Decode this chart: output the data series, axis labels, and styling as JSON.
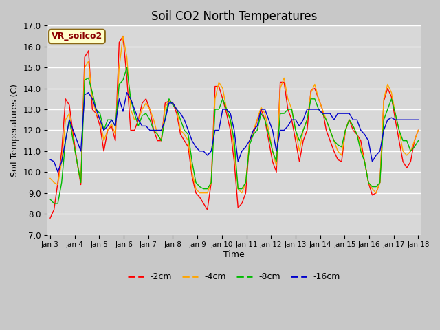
{
  "title": "Soil CO2 North Temperatures",
  "xlabel": "Time",
  "ylabel": "Soil Temperatures (C)",
  "ylim": [
    7.0,
    17.0
  ],
  "yticks": [
    7.0,
    8.0,
    9.0,
    10.0,
    11.0,
    12.0,
    13.0,
    14.0,
    15.0,
    16.0,
    17.0
  ],
  "legend_label": "VR_soilco2",
  "fig_facecolor": "#c8c8c8",
  "axes_facecolor": "#d8d8d8",
  "grid_color": "#ffffff",
  "series_colors": {
    "-2cm": "#ff0000",
    "-4cm": "#ffa500",
    "-8cm": "#00bb00",
    "-16cm": "#0000cc"
  },
  "xtick_labels": [
    "Jan 3",
    "Jan 4",
    "Jan 5",
    "Jan 6",
    "Jan 7",
    "Jan 8",
    "Jan 9",
    "Jan 10",
    "Jan 11",
    "Jan 12",
    "Jan 13",
    "Jan 14",
    "Jan 15",
    "Jan 16",
    "Jan 17",
    "Jan 18"
  ],
  "t_2cm": [
    7.8,
    8.2,
    9.5,
    11.0,
    13.5,
    13.2,
    11.8,
    10.5,
    9.4,
    15.5,
    15.8,
    13.0,
    12.8,
    12.2,
    11.0,
    12.0,
    12.2,
    11.5,
    16.2,
    16.5,
    14.5,
    12.0,
    12.0,
    12.5,
    13.3,
    13.5,
    13.0,
    12.0,
    11.5,
    11.5,
    13.3,
    13.4,
    13.3,
    12.8,
    11.8,
    11.5,
    11.2,
    9.8,
    9.0,
    8.8,
    8.5,
    8.2,
    9.5,
    14.1,
    14.1,
    13.5,
    12.8,
    12.0,
    10.5,
    8.3,
    8.5,
    9.0,
    11.5,
    11.8,
    12.5,
    13.0,
    12.5,
    11.5,
    10.5,
    10.0,
    14.3,
    14.3,
    13.0,
    12.5,
    11.5,
    10.5,
    11.5,
    12.0,
    13.9,
    14.0,
    13.5,
    13.0,
    12.0,
    11.5,
    11.0,
    10.6,
    10.5,
    12.0,
    12.5,
    12.0,
    11.8,
    11.5,
    10.5,
    9.5,
    8.9,
    9.0,
    9.5,
    13.4,
    14.0,
    13.6,
    12.5,
    11.5,
    10.5,
    10.2,
    10.5,
    11.5,
    12.0
  ],
  "t_4cm": [
    9.7,
    9.5,
    9.4,
    10.5,
    12.5,
    12.8,
    11.5,
    10.5,
    9.5,
    15.0,
    15.3,
    13.5,
    12.8,
    12.5,
    11.5,
    12.0,
    12.3,
    11.8,
    15.0,
    16.5,
    15.5,
    13.0,
    12.5,
    12.5,
    13.0,
    13.3,
    13.0,
    12.5,
    11.8,
    11.5,
    13.1,
    13.4,
    13.3,
    13.0,
    12.0,
    11.8,
    11.5,
    10.0,
    9.2,
    9.0,
    9.0,
    9.0,
    9.5,
    13.5,
    14.3,
    14.0,
    13.0,
    12.5,
    11.0,
    9.2,
    9.0,
    9.5,
    11.5,
    12.0,
    12.5,
    13.1,
    12.8,
    12.0,
    11.0,
    10.3,
    14.0,
    14.5,
    13.5,
    13.0,
    12.0,
    11.0,
    12.0,
    12.5,
    13.8,
    14.2,
    13.5,
    13.0,
    12.5,
    12.0,
    11.5,
    11.0,
    10.8,
    12.0,
    12.5,
    12.2,
    11.8,
    11.2,
    10.5,
    9.5,
    9.2,
    9.0,
    9.5,
    13.5,
    14.2,
    13.8,
    12.8,
    12.0,
    11.0,
    10.8,
    11.0,
    11.5,
    12.0
  ],
  "t_8cm": [
    8.7,
    8.5,
    8.5,
    9.5,
    11.5,
    12.5,
    11.5,
    10.5,
    9.5,
    14.4,
    14.5,
    13.8,
    13.0,
    12.8,
    12.0,
    12.5,
    12.5,
    12.2,
    14.2,
    14.4,
    15.0,
    13.5,
    12.8,
    12.2,
    12.7,
    12.8,
    12.5,
    12.0,
    11.8,
    11.5,
    12.6,
    13.5,
    13.2,
    13.0,
    12.5,
    12.0,
    11.8,
    10.5,
    9.5,
    9.3,
    9.2,
    9.2,
    9.5,
    13.0,
    13.0,
    13.5,
    13.0,
    12.5,
    11.5,
    9.2,
    9.2,
    9.5,
    11.3,
    11.8,
    12.0,
    12.8,
    12.5,
    11.8,
    11.0,
    10.5,
    12.8,
    12.8,
    13.0,
    13.0,
    12.0,
    11.5,
    12.0,
    12.5,
    13.5,
    13.5,
    13.0,
    12.8,
    12.5,
    12.0,
    11.5,
    11.3,
    11.2,
    12.0,
    12.5,
    12.2,
    11.8,
    11.0,
    10.5,
    9.5,
    9.3,
    9.3,
    9.5,
    12.5,
    13.0,
    13.5,
    12.8,
    12.0,
    11.5,
    11.5,
    11.0,
    11.2,
    11.5
  ],
  "t_16cm": [
    10.6,
    10.5,
    10.0,
    10.5,
    11.5,
    12.5,
    12.0,
    11.5,
    11.0,
    13.7,
    13.8,
    13.5,
    13.0,
    12.5,
    12.0,
    12.2,
    12.5,
    12.2,
    13.5,
    12.9,
    13.8,
    13.5,
    13.0,
    12.5,
    12.2,
    12.2,
    12.0,
    12.0,
    12.0,
    12.0,
    12.5,
    13.3,
    13.3,
    13.0,
    12.8,
    12.5,
    12.0,
    11.5,
    11.2,
    11.0,
    11.0,
    10.8,
    11.0,
    12.0,
    12.0,
    13.0,
    13.0,
    12.8,
    12.0,
    10.5,
    11.0,
    11.2,
    11.5,
    12.0,
    12.2,
    13.0,
    13.0,
    12.5,
    12.0,
    11.0,
    12.0,
    12.0,
    12.2,
    12.5,
    12.5,
    12.2,
    12.5,
    13.0,
    13.0,
    13.0,
    13.0,
    12.8,
    12.8,
    12.8,
    12.5,
    12.8,
    12.8,
    12.8,
    12.8,
    12.5,
    12.5,
    12.0,
    11.8,
    11.5,
    10.5,
    10.8,
    11.0,
    12.0,
    12.5,
    12.6,
    12.5,
    12.5,
    12.5,
    12.5,
    12.5,
    12.5,
    12.5
  ]
}
